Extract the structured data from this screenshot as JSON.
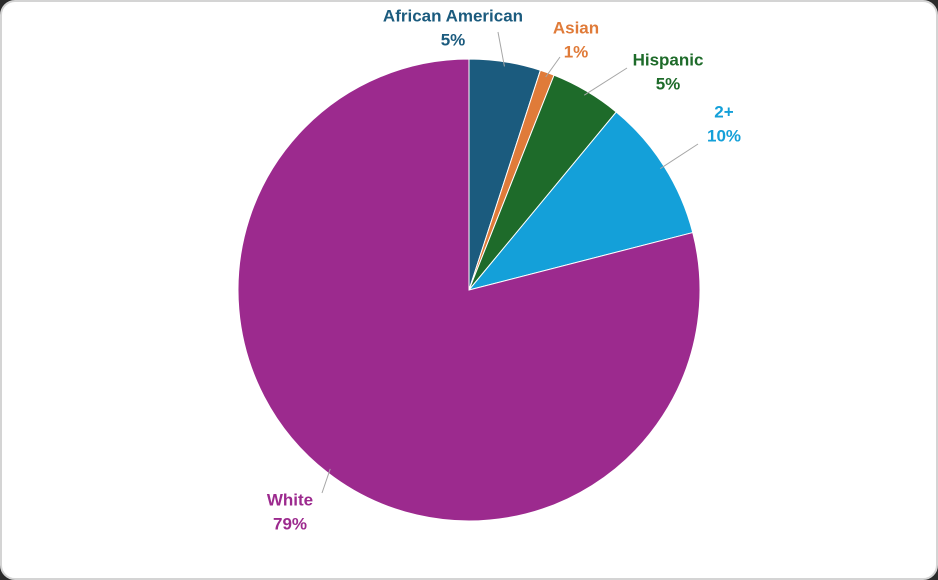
{
  "chart_data": {
    "type": "pie",
    "categories": [
      "African American",
      "Asian",
      "Hispanic",
      "2+",
      "White"
    ],
    "values": [
      5,
      1,
      5,
      10,
      79
    ],
    "value_labels": [
      "5%",
      "1%",
      "5%",
      "10%",
      "79%"
    ],
    "colors": [
      "#1b5b7e",
      "#e07b39",
      "#1e6b2a",
      "#14a0d9",
      "#9c2a8e"
    ]
  }
}
